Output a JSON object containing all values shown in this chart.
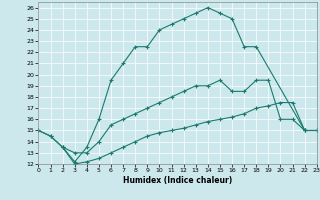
{
  "xlabel": "Humidex (Indice chaleur)",
  "background_color": "#cce8ed",
  "line_color": "#1a7a6e",
  "ylim": [
    12,
    26.5
  ],
  "xlim": [
    0,
    23
  ],
  "yticks": [
    12,
    13,
    14,
    15,
    16,
    17,
    18,
    19,
    20,
    21,
    22,
    23,
    24,
    25,
    26
  ],
  "xticks": [
    0,
    1,
    2,
    3,
    4,
    5,
    6,
    7,
    8,
    9,
    10,
    11,
    12,
    13,
    14,
    15,
    16,
    17,
    18,
    19,
    20,
    21,
    22,
    23
  ],
  "curves": [
    {
      "x": [
        0,
        1,
        2,
        3,
        4,
        5,
        6,
        7,
        8,
        9,
        10,
        11,
        12,
        13,
        14,
        15,
        16,
        17,
        18,
        22
      ],
      "y": [
        15,
        14.5,
        13.5,
        12.2,
        13.5,
        16,
        19.5,
        21,
        22.5,
        22.5,
        24,
        24.5,
        25,
        25.5,
        26,
        25.5,
        25,
        22.5,
        22.5,
        15
      ]
    },
    {
      "x": [
        0,
        1,
        2,
        3,
        4,
        5,
        6,
        7,
        8,
        9,
        10,
        11,
        12,
        13,
        14,
        15,
        16,
        17,
        18,
        19,
        20,
        21,
        22,
        23
      ],
      "y": [
        15,
        14.5,
        13.5,
        13,
        13,
        14,
        15.5,
        16,
        16.5,
        17,
        17.5,
        18,
        18.5,
        19,
        19,
        19.5,
        18.5,
        18.5,
        19.5,
        19.5,
        16,
        16,
        15,
        15
      ]
    },
    {
      "x": [
        2,
        3,
        4,
        5,
        6,
        7,
        8,
        9,
        10,
        11,
        12,
        13,
        14,
        15,
        16,
        17,
        18,
        19,
        20,
        21,
        22,
        23
      ],
      "y": [
        13.5,
        12,
        12.2,
        12.5,
        13,
        13.5,
        14,
        14.5,
        14.8,
        15,
        15.2,
        15.5,
        15.8,
        16,
        16.2,
        16.5,
        17,
        17.2,
        17.5,
        17.5,
        15,
        15
      ]
    }
  ]
}
